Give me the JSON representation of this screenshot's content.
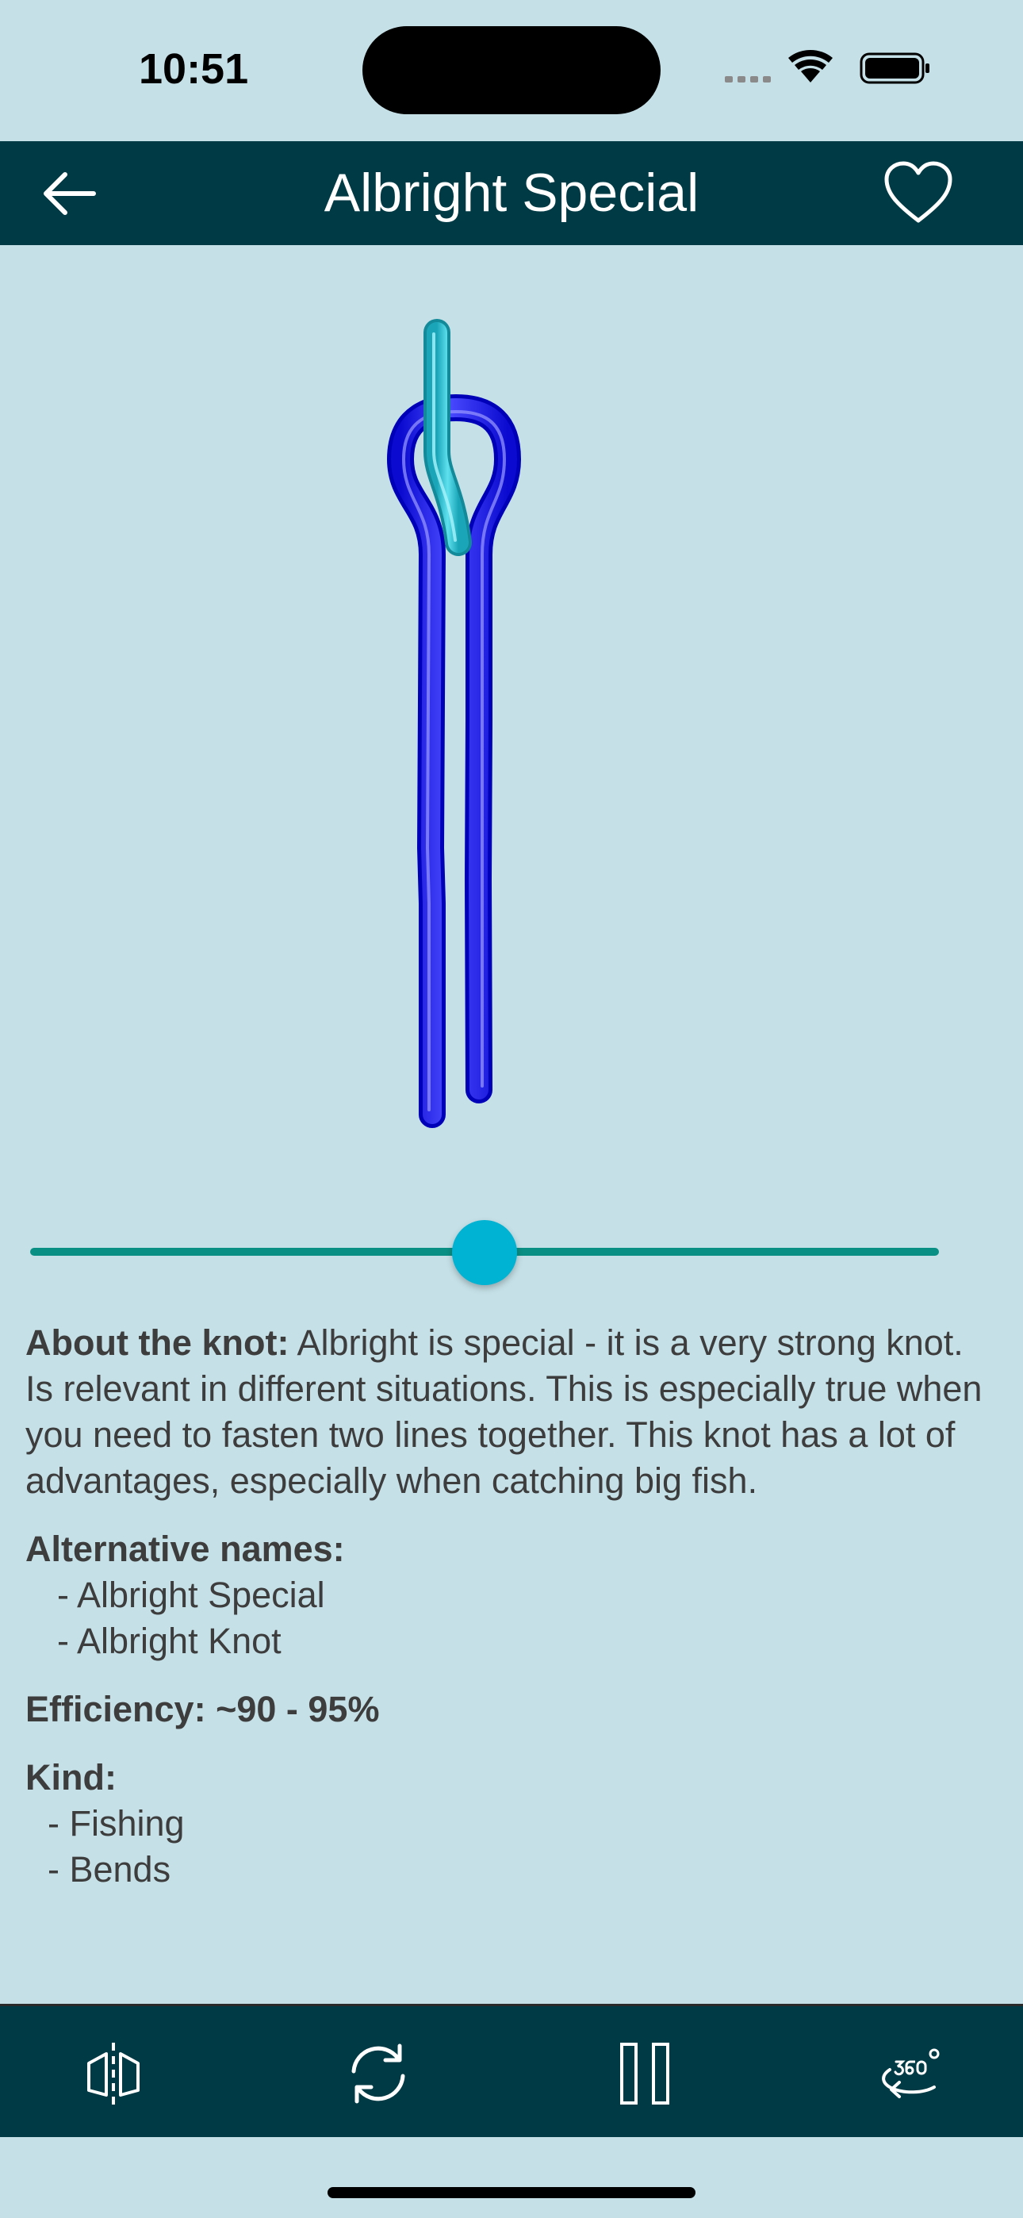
{
  "status_bar": {
    "time": "10:51"
  },
  "nav": {
    "title": "Albright Special",
    "back_icon": "arrow-left-icon",
    "favorite_icon": "heart-outline-icon"
  },
  "slider": {
    "value": 0.5
  },
  "about": {
    "label": "About the knot:",
    "text": " Albright is special - it is a very strong knot. Is relevant in different situations. This is especially true when you need to fasten two lines together. This knot has a lot of advantages, especially when catching big fish."
  },
  "alternative_names": {
    "label": "Alternative names:",
    "items": [
      "- Albright Special",
      "- Albright Knot"
    ]
  },
  "efficiency": {
    "label": "Efficiency: ~90 - 95%"
  },
  "kind": {
    "label": "Kind:",
    "items": [
      "- Fishing",
      "- Bends"
    ]
  },
  "toolbar": {
    "buttons": [
      {
        "name": "mirror-icon"
      },
      {
        "name": "refresh-icon"
      },
      {
        "name": "pause-icon"
      },
      {
        "name": "rotate-360-icon"
      }
    ]
  },
  "colors": {
    "background": "#c5e0e7",
    "nav_background": "#003a44",
    "slider_track": "#0a8f84",
    "slider_thumb": "#00b3d3",
    "rope_primary": "#1a1aff",
    "rope_secondary": "#33c6d8"
  }
}
